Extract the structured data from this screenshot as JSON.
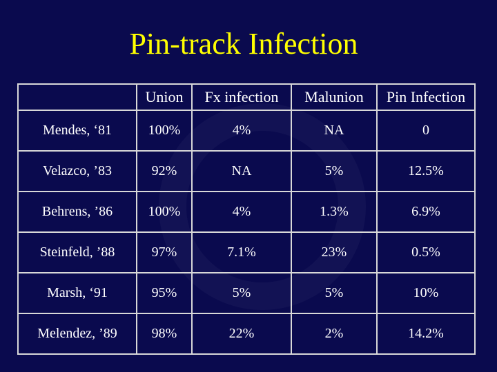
{
  "slide": {
    "title": "Pin-track Infection"
  },
  "table": {
    "columns": [
      "",
      "Union",
      "Fx infection",
      "Malunion",
      "Pin Infection"
    ],
    "rows": [
      {
        "study": "Mendes, ‘81",
        "union": "100%",
        "fx_infection": "4%",
        "malunion": "NA",
        "pin_infection": "0"
      },
      {
        "study": "Velazco, ’83",
        "union": "92%",
        "fx_infection": "NA",
        "malunion": "5%",
        "pin_infection": "12.5%"
      },
      {
        "study": "Behrens, ’86",
        "union": "100%",
        "fx_infection": "4%",
        "malunion": "1.3%",
        "pin_infection": "6.9%"
      },
      {
        "study": "Steinfeld, ’88",
        "union": "97%",
        "fx_infection": "7.1%",
        "malunion": "23%",
        "pin_infection": "0.5%"
      },
      {
        "study": "Marsh, ‘91",
        "union": "95%",
        "fx_infection": "5%",
        "malunion": "5%",
        "pin_infection": "10%"
      },
      {
        "study": "Melendez, ’89",
        "union": "98%",
        "fx_infection": "22%",
        "malunion": "2%",
        "pin_infection": "14.2%"
      }
    ]
  },
  "colors": {
    "background": "#0a0a4e",
    "title": "#ffff00",
    "text": "#ffffff",
    "grid": "#d8d8d8"
  }
}
